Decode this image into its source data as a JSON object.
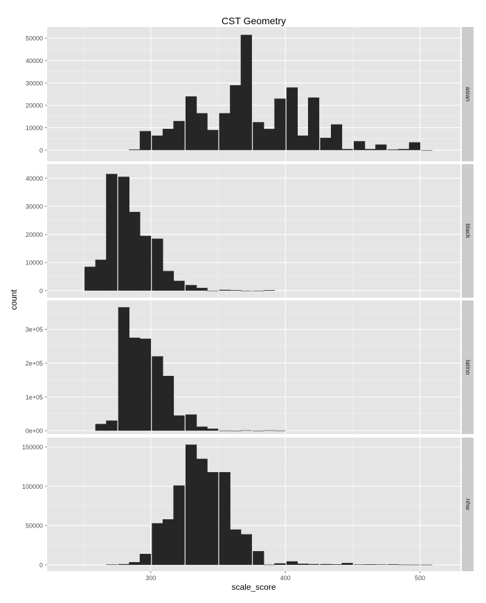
{
  "chart_data": {
    "type": "bar",
    "title": "CST Geometry",
    "xlabel": "scale_score",
    "ylabel": "count",
    "xlim": [
      223,
      530
    ],
    "x_ticks": [
      300,
      400,
      500
    ],
    "x_tick_labels": [
      "300",
      "400",
      "500"
    ],
    "bin_width": 8.333,
    "grid": true,
    "facets": [
      {
        "name": "asian",
        "ylim": [
          -5000,
          55000
        ],
        "y_ticks": [
          0,
          10000,
          20000,
          30000,
          40000,
          50000
        ],
        "y_tick_labels": [
          "0",
          "10000",
          "20000",
          "30000",
          "40000",
          "50000"
        ],
        "x": [
          288,
          296,
          305,
          313,
          321,
          330,
          338,
          346,
          355,
          363,
          371,
          380,
          388,
          396,
          405,
          413,
          421,
          430,
          438,
          446,
          455,
          463,
          471,
          480,
          488,
          496,
          505
        ],
        "values": [
          300,
          8500,
          6500,
          9500,
          13000,
          24000,
          16500,
          9000,
          16500,
          29000,
          51500,
          12500,
          9500,
          23000,
          28000,
          6500,
          23500,
          5500,
          11500,
          500,
          4000,
          500,
          2500,
          300,
          500,
          3500,
          0
        ]
      },
      {
        "name": "black",
        "ylim": [
          -2500,
          45000
        ],
        "y_ticks": [
          0,
          10000,
          20000,
          30000,
          40000
        ],
        "y_tick_labels": [
          "0",
          "10000",
          "20000",
          "30000",
          "40000"
        ],
        "x": [
          255,
          263,
          271,
          280,
          288,
          296,
          305,
          313,
          321,
          330,
          338,
          346,
          355,
          363,
          371,
          380,
          388
        ],
        "values": [
          8500,
          11000,
          41500,
          40500,
          28000,
          19500,
          18500,
          7000,
          3500,
          2000,
          1000,
          0,
          300,
          200,
          0,
          0,
          200
        ]
      },
      {
        "name": "latino",
        "ylim": [
          -10000,
          385000
        ],
        "y_ticks": [
          0,
          100000,
          200000,
          300000
        ],
        "y_tick_labels": [
          "0e+00",
          "1e+05",
          "2e+05",
          "3e+05"
        ],
        "x": [
          263,
          271,
          280,
          288,
          296,
          305,
          313,
          321,
          330,
          338,
          346,
          355,
          363,
          371,
          380,
          388,
          396
        ],
        "values": [
          20000,
          30000,
          365000,
          275000,
          272000,
          220000,
          162000,
          45000,
          48000,
          12000,
          6000,
          500,
          0,
          1000,
          0,
          1000,
          500
        ]
      },
      {
        "name": "nhw",
        "ylim": [
          -8000,
          162000
        ],
        "y_ticks": [
          0,
          50000,
          100000,
          150000
        ],
        "y_tick_labels": [
          "0",
          "50000",
          "100000",
          "150000"
        ],
        "x": [
          271,
          280,
          288,
          296,
          305,
          313,
          321,
          330,
          338,
          346,
          355,
          363,
          371,
          380,
          388,
          396,
          405,
          413,
          421,
          430,
          438,
          446,
          455,
          463,
          471,
          480,
          488,
          496,
          505
        ],
        "values": [
          500,
          1000,
          3500,
          14000,
          53000,
          58000,
          101000,
          153000,
          135000,
          118000,
          118000,
          45000,
          39000,
          17500,
          300,
          2000,
          4500,
          1500,
          1000,
          1000,
          700,
          2500,
          500,
          700,
          500,
          700,
          300,
          200,
          200
        ]
      }
    ]
  }
}
